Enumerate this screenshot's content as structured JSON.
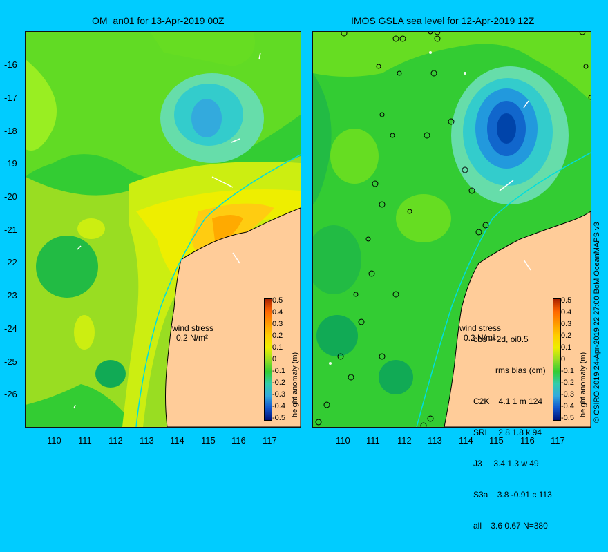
{
  "titles": {
    "left": "OM_an01 for 13-Apr-2019 00Z",
    "right": "IMOS GSLA sea level  for 12-Apr-2019 12Z"
  },
  "axes": {
    "lat_labels": [
      "-16",
      "-17",
      "-18",
      "-19",
      "-20",
      "-21",
      "-22",
      "-23",
      "-24",
      "-25",
      "-26"
    ],
    "lon_labels": [
      "110",
      "111",
      "112",
      "113",
      "114",
      "115",
      "116",
      "117"
    ]
  },
  "wind": {
    "label": "wind stress",
    "value": "0.2 N/m²"
  },
  "colorbar": {
    "ticks": [
      "0.5",
      "0.4",
      "0.3",
      "0.2",
      "0.1",
      "0",
      "-0.1",
      "-0.2",
      "-0.3",
      "-0.4",
      "-0.5"
    ],
    "label": "height anomaly (m)"
  },
  "stats": {
    "header": "obs -+2d, oi0.5",
    "subheader": "rms bias (cm)",
    "rows": [
      "C2K    4.1 1 m 124",
      "SRL    2.8 1.8 k 94",
      "J3     3.4 1.3 w 49",
      "S3a    3.8 -0.91 c 113",
      "all    3.6 0.67 N=380"
    ]
  },
  "credit": "© CSIRO 2019  24-Apr-2019 22:27:00 BoM OceanMAPS v3",
  "colors": {
    "background": "#00ccff",
    "land": "#ffcc99",
    "ocean_base": "#33cc33",
    "anomaly_low": "#0044cc",
    "anomaly_high": "#ff8800"
  }
}
